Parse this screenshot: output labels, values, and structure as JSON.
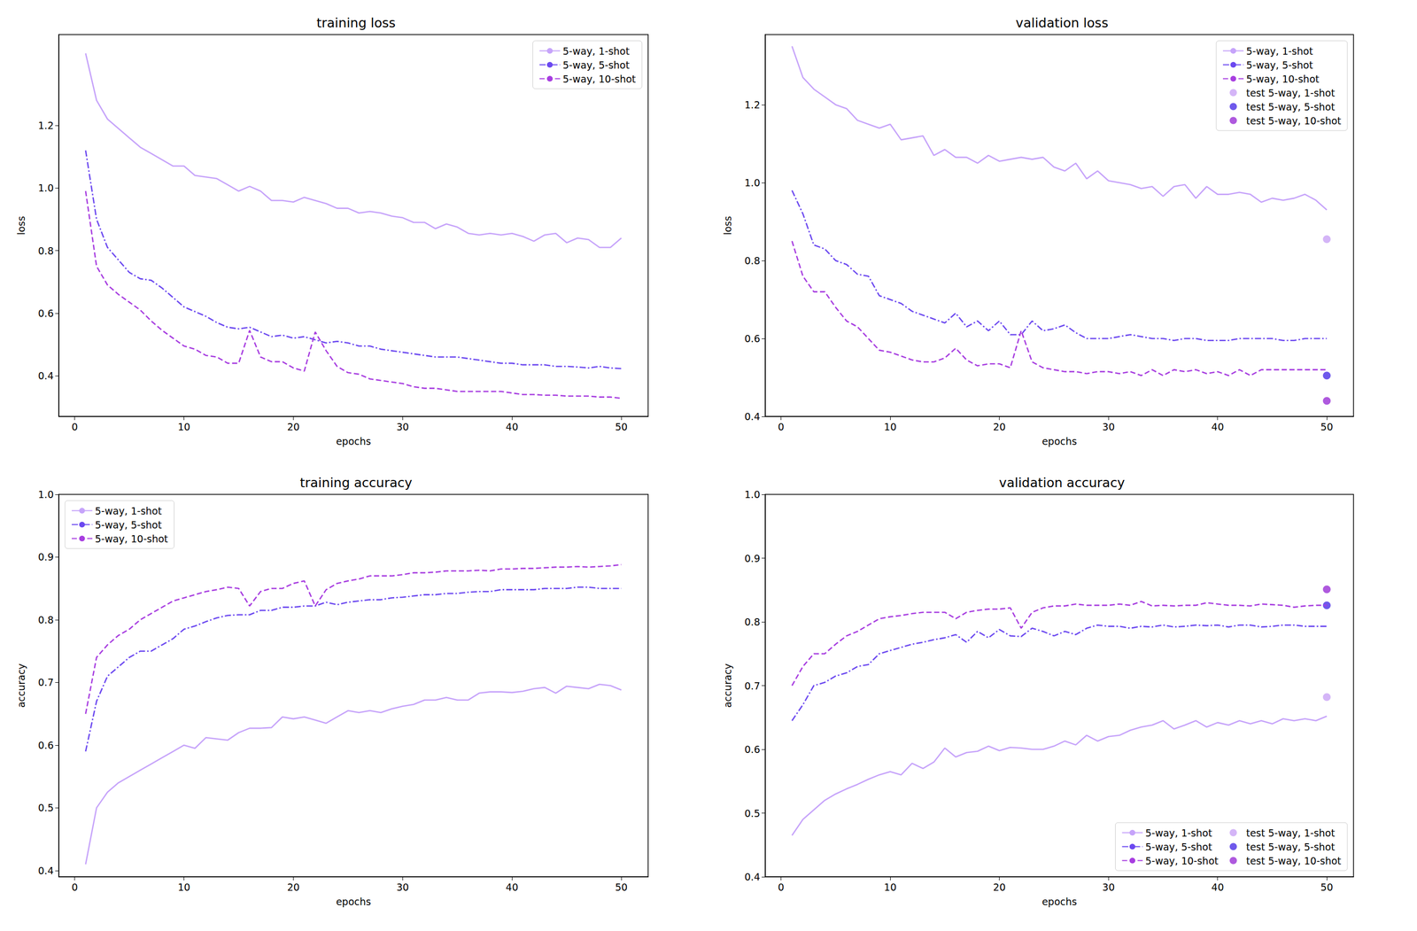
{
  "chart_data": [
    {
      "type": "line",
      "title": "training loss",
      "xlabel": "epochs",
      "ylabel": "loss",
      "x": [
        1,
        2,
        3,
        4,
        5,
        6,
        7,
        8,
        9,
        10,
        11,
        12,
        13,
        14,
        15,
        16,
        17,
        18,
        19,
        20,
        21,
        22,
        23,
        24,
        25,
        26,
        27,
        28,
        29,
        30,
        31,
        32,
        33,
        34,
        35,
        36,
        37,
        38,
        39,
        40,
        41,
        42,
        43,
        44,
        45,
        46,
        47,
        48,
        49,
        50
      ],
      "xlim": [
        -1.45,
        52.45
      ],
      "xticks": [
        0,
        10,
        20,
        30,
        40,
        50
      ],
      "ylim": [
        0.27,
        1.49
      ],
      "yticks": [
        0.4,
        0.6,
        0.8,
        {
          "value": 1.0,
          "label": "1.0"
        },
        1.2
      ],
      "grid": false,
      "legend": "upper right",
      "series": [
        {
          "name": "5-way, 1-shot",
          "color": "#c6a3fa",
          "line_style": "solid",
          "values": [
            1.43,
            1.28,
            1.22,
            1.19,
            1.16,
            1.13,
            1.11,
            1.09,
            1.07,
            1.07,
            1.04,
            1.035,
            1.03,
            1.01,
            0.99,
            1.005,
            0.99,
            0.96,
            0.96,
            0.955,
            0.97,
            0.96,
            0.95,
            0.935,
            0.935,
            0.92,
            0.925,
            0.92,
            0.91,
            0.905,
            0.89,
            0.89,
            0.87,
            0.885,
            0.875,
            0.855,
            0.85,
            0.855,
            0.85,
            0.855,
            0.845,
            0.83,
            0.85,
            0.855,
            0.825,
            0.84,
            0.835,
            0.81,
            0.81,
            0.84
          ]
        },
        {
          "name": "5-way, 5-shot",
          "color": "#6b48f0",
          "line_style": "dashdot",
          "values": [
            1.12,
            0.9,
            0.81,
            0.77,
            0.73,
            0.71,
            0.705,
            0.68,
            0.65,
            0.62,
            0.605,
            0.59,
            0.57,
            0.555,
            0.55,
            0.555,
            0.54,
            0.525,
            0.53,
            0.52,
            0.525,
            0.515,
            0.505,
            0.51,
            0.505,
            0.495,
            0.495,
            0.485,
            0.48,
            0.475,
            0.47,
            0.465,
            0.46,
            0.46,
            0.46,
            0.455,
            0.45,
            0.445,
            0.44,
            0.44,
            0.435,
            0.435,
            0.435,
            0.43,
            0.43,
            0.428,
            0.425,
            0.43,
            0.425,
            0.423
          ]
        },
        {
          "name": "5-way, 10-shot",
          "color": "#a73de0",
          "line_style": "dashed",
          "values": [
            0.99,
            0.75,
            0.69,
            0.66,
            0.635,
            0.61,
            0.575,
            0.545,
            0.52,
            0.495,
            0.485,
            0.465,
            0.46,
            0.44,
            0.44,
            0.545,
            0.46,
            0.445,
            0.445,
            0.425,
            0.415,
            0.54,
            0.48,
            0.43,
            0.41,
            0.405,
            0.39,
            0.385,
            0.38,
            0.375,
            0.365,
            0.36,
            0.36,
            0.355,
            0.35,
            0.35,
            0.35,
            0.35,
            0.35,
            0.345,
            0.34,
            0.34,
            0.338,
            0.338,
            0.335,
            0.335,
            0.335,
            0.332,
            0.332,
            0.328
          ]
        }
      ]
    },
    {
      "type": "line",
      "title": "validation loss",
      "xlabel": "epochs",
      "ylabel": "loss",
      "x": [
        1,
        2,
        3,
        4,
        5,
        6,
        7,
        8,
        9,
        10,
        11,
        12,
        13,
        14,
        15,
        16,
        17,
        18,
        19,
        20,
        21,
        22,
        23,
        24,
        25,
        26,
        27,
        28,
        29,
        30,
        31,
        32,
        33,
        34,
        35,
        36,
        37,
        38,
        39,
        40,
        41,
        42,
        43,
        44,
        45,
        46,
        47,
        48,
        49,
        50
      ],
      "xlim": [
        -1.45,
        52.45
      ],
      "xticks": [
        0,
        10,
        20,
        30,
        40,
        50
      ],
      "ylim": [
        0.4,
        1.38
      ],
      "yticks": [
        0.4,
        0.6,
        0.8,
        {
          "value": 1.0,
          "label": "1.0"
        },
        1.2
      ],
      "grid": false,
      "legend": "upper right",
      "series": [
        {
          "name": "5-way, 1-shot",
          "color": "#c6a3fa",
          "line_style": "solid",
          "values": [
            1.35,
            1.27,
            1.24,
            1.22,
            1.2,
            1.19,
            1.16,
            1.15,
            1.14,
            1.15,
            1.11,
            1.115,
            1.12,
            1.07,
            1.085,
            1.065,
            1.065,
            1.05,
            1.07,
            1.055,
            1.06,
            1.065,
            1.06,
            1.065,
            1.04,
            1.03,
            1.05,
            1.01,
            1.03,
            1.005,
            1.0,
            0.995,
            0.985,
            0.99,
            0.965,
            0.99,
            0.995,
            0.96,
            0.99,
            0.97,
            0.97,
            0.975,
            0.97,
            0.95,
            0.96,
            0.955,
            0.96,
            0.97,
            0.955,
            0.93
          ]
        },
        {
          "name": "5-way, 5-shot",
          "color": "#6b48f0",
          "line_style": "dashdot",
          "values": [
            0.98,
            0.92,
            0.84,
            0.83,
            0.8,
            0.79,
            0.765,
            0.76,
            0.71,
            0.7,
            0.69,
            0.67,
            0.66,
            0.65,
            0.64,
            0.665,
            0.63,
            0.645,
            0.62,
            0.645,
            0.61,
            0.61,
            0.645,
            0.62,
            0.625,
            0.635,
            0.615,
            0.6,
            0.6,
            0.6,
            0.605,
            0.61,
            0.605,
            0.6,
            0.6,
            0.595,
            0.6,
            0.6,
            0.595,
            0.595,
            0.595,
            0.6,
            0.6,
            0.6,
            0.6,
            0.595,
            0.595,
            0.6,
            0.6,
            0.6
          ]
        },
        {
          "name": "5-way, 10-shot",
          "color": "#a73de0",
          "line_style": "dashed",
          "values": [
            0.85,
            0.76,
            0.72,
            0.72,
            0.68,
            0.645,
            0.63,
            0.6,
            0.57,
            0.565,
            0.555,
            0.545,
            0.54,
            0.54,
            0.55,
            0.575,
            0.545,
            0.53,
            0.535,
            0.535,
            0.525,
            0.62,
            0.54,
            0.525,
            0.52,
            0.515,
            0.515,
            0.51,
            0.515,
            0.515,
            0.51,
            0.515,
            0.505,
            0.52,
            0.505,
            0.52,
            0.515,
            0.52,
            0.51,
            0.515,
            0.505,
            0.52,
            0.505,
            0.52,
            0.52,
            0.52,
            0.52,
            0.52,
            0.52,
            0.52
          ]
        },
        {
          "name": "test 5-way, 1-shot",
          "type": "scatter",
          "marker": "circle",
          "color": "#c9a3f5",
          "x": [
            50
          ],
          "values": [
            0.855
          ]
        },
        {
          "name": "test 5-way, 5-shot",
          "type": "scatter",
          "marker": "circle",
          "color": "#4a2fe6",
          "x": [
            50
          ],
          "values": [
            0.505
          ]
        },
        {
          "name": "test 5-way, 10-shot",
          "type": "scatter",
          "marker": "circle",
          "color": "#9a2fd6",
          "x": [
            50
          ],
          "values": [
            0.44
          ]
        }
      ]
    },
    {
      "type": "line",
      "title": "training accuracy",
      "xlabel": "epochs",
      "ylabel": "accuracy",
      "x": [
        1,
        2,
        3,
        4,
        5,
        6,
        7,
        8,
        9,
        10,
        11,
        12,
        13,
        14,
        15,
        16,
        17,
        18,
        19,
        20,
        21,
        22,
        23,
        24,
        25,
        26,
        27,
        28,
        29,
        30,
        31,
        32,
        33,
        34,
        35,
        36,
        37,
        38,
        39,
        40,
        41,
        42,
        43,
        44,
        45,
        46,
        47,
        48,
        49,
        50
      ],
      "xlim": [
        -1.45,
        52.45
      ],
      "xticks": [
        0,
        10,
        20,
        30,
        40,
        50
      ],
      "ylim": [
        0.39,
        1.0
      ],
      "yticks": [
        0.4,
        0.5,
        0.6,
        0.7,
        0.8,
        0.9,
        {
          "value": 1.0,
          "label": "1.0"
        }
      ],
      "grid": false,
      "legend": "upper left",
      "series": [
        {
          "name": "5-way, 1-shot",
          "color": "#c6a3fa",
          "line_style": "solid",
          "values": [
            0.41,
            0.5,
            0.525,
            0.54,
            0.55,
            0.56,
            0.57,
            0.58,
            0.59,
            0.6,
            0.595,
            0.612,
            0.61,
            0.608,
            0.62,
            0.627,
            0.627,
            0.628,
            0.645,
            0.642,
            0.645,
            0.64,
            0.635,
            0.645,
            0.655,
            0.652,
            0.655,
            0.652,
            0.658,
            0.662,
            0.665,
            0.672,
            0.672,
            0.676,
            0.672,
            0.672,
            0.683,
            0.685,
            0.685,
            0.684,
            0.686,
            0.69,
            0.692,
            0.683,
            0.694,
            0.692,
            0.69,
            0.697,
            0.695,
            0.688
          ]
        },
        {
          "name": "5-way, 5-shot",
          "color": "#6b48f0",
          "line_style": "dashdot",
          "values": [
            0.59,
            0.67,
            0.71,
            0.725,
            0.74,
            0.75,
            0.75,
            0.76,
            0.77,
            0.785,
            0.79,
            0.797,
            0.803,
            0.807,
            0.808,
            0.808,
            0.815,
            0.815,
            0.82,
            0.82,
            0.822,
            0.822,
            0.828,
            0.824,
            0.828,
            0.83,
            0.832,
            0.832,
            0.835,
            0.836,
            0.838,
            0.84,
            0.84,
            0.842,
            0.842,
            0.844,
            0.845,
            0.845,
            0.848,
            0.848,
            0.848,
            0.848,
            0.85,
            0.85,
            0.85,
            0.852,
            0.852,
            0.85,
            0.85,
            0.85
          ]
        },
        {
          "name": "5-way, 10-shot",
          "color": "#a73de0",
          "line_style": "dashed",
          "values": [
            0.65,
            0.74,
            0.76,
            0.775,
            0.785,
            0.8,
            0.81,
            0.82,
            0.83,
            0.835,
            0.84,
            0.845,
            0.848,
            0.852,
            0.85,
            0.822,
            0.845,
            0.85,
            0.85,
            0.858,
            0.862,
            0.822,
            0.848,
            0.858,
            0.862,
            0.865,
            0.87,
            0.87,
            0.87,
            0.872,
            0.875,
            0.875,
            0.876,
            0.878,
            0.878,
            0.878,
            0.879,
            0.878,
            0.881,
            0.881,
            0.882,
            0.882,
            0.883,
            0.884,
            0.884,
            0.885,
            0.884,
            0.885,
            0.886,
            0.888
          ]
        }
      ]
    },
    {
      "type": "line",
      "title": "validation accuracy",
      "xlabel": "epochs",
      "ylabel": "accuracy",
      "x": [
        1,
        2,
        3,
        4,
        5,
        6,
        7,
        8,
        9,
        10,
        11,
        12,
        13,
        14,
        15,
        16,
        17,
        18,
        19,
        20,
        21,
        22,
        23,
        24,
        25,
        26,
        27,
        28,
        29,
        30,
        31,
        32,
        33,
        34,
        35,
        36,
        37,
        38,
        39,
        40,
        41,
        42,
        43,
        44,
        45,
        46,
        47,
        48,
        49,
        50
      ],
      "xlim": [
        -1.45,
        52.45
      ],
      "xticks": [
        0,
        10,
        20,
        30,
        40,
        50
      ],
      "ylim": [
        0.4,
        1.0
      ],
      "yticks": [
        0.4,
        0.5,
        0.6,
        0.7,
        0.8,
        0.9,
        {
          "value": 1.0,
          "label": "1.0"
        }
      ],
      "grid": false,
      "legend": "lower right",
      "series": [
        {
          "name": "5-way, 1-shot",
          "color": "#c6a3fa",
          "line_style": "solid",
          "values": [
            0.465,
            0.49,
            0.505,
            0.52,
            0.53,
            0.538,
            0.545,
            0.553,
            0.56,
            0.565,
            0.56,
            0.578,
            0.57,
            0.58,
            0.602,
            0.588,
            0.595,
            0.597,
            0.605,
            0.598,
            0.603,
            0.602,
            0.6,
            0.6,
            0.605,
            0.613,
            0.607,
            0.622,
            0.613,
            0.62,
            0.622,
            0.63,
            0.635,
            0.638,
            0.645,
            0.632,
            0.638,
            0.645,
            0.635,
            0.642,
            0.638,
            0.645,
            0.64,
            0.645,
            0.64,
            0.648,
            0.645,
            0.648,
            0.645,
            0.652
          ]
        },
        {
          "name": "5-way, 5-shot",
          "color": "#6b48f0",
          "line_style": "dashdot",
          "values": [
            0.645,
            0.67,
            0.7,
            0.705,
            0.715,
            0.72,
            0.73,
            0.733,
            0.75,
            0.755,
            0.76,
            0.765,
            0.768,
            0.772,
            0.775,
            0.78,
            0.768,
            0.785,
            0.775,
            0.788,
            0.778,
            0.777,
            0.79,
            0.785,
            0.778,
            0.785,
            0.78,
            0.79,
            0.795,
            0.793,
            0.793,
            0.79,
            0.793,
            0.792,
            0.795,
            0.792,
            0.793,
            0.795,
            0.794,
            0.795,
            0.792,
            0.795,
            0.795,
            0.792,
            0.793,
            0.795,
            0.795,
            0.793,
            0.793,
            0.793
          ]
        },
        {
          "name": "5-way, 10-shot",
          "color": "#a73de0",
          "line_style": "dashed",
          "values": [
            0.7,
            0.73,
            0.75,
            0.75,
            0.765,
            0.778,
            0.785,
            0.795,
            0.805,
            0.808,
            0.81,
            0.813,
            0.815,
            0.815,
            0.815,
            0.805,
            0.815,
            0.818,
            0.82,
            0.82,
            0.822,
            0.79,
            0.815,
            0.822,
            0.825,
            0.825,
            0.828,
            0.826,
            0.826,
            0.826,
            0.828,
            0.826,
            0.832,
            0.825,
            0.826,
            0.825,
            0.826,
            0.826,
            0.83,
            0.828,
            0.826,
            0.826,
            0.825,
            0.828,
            0.827,
            0.826,
            0.823,
            0.825,
            0.826,
            0.826
          ]
        },
        {
          "name": "test 5-way, 1-shot",
          "type": "scatter",
          "marker": "circle",
          "color": "#c9a3f5",
          "x": [
            50
          ],
          "values": [
            0.682
          ]
        },
        {
          "name": "test 5-way, 5-shot",
          "type": "scatter",
          "marker": "circle",
          "color": "#4a2fe6",
          "x": [
            50
          ],
          "values": [
            0.826
          ]
        },
        {
          "name": "test 5-way, 10-shot",
          "type": "scatter",
          "marker": "circle",
          "color": "#9a2fd6",
          "x": [
            50
          ],
          "values": [
            0.851
          ]
        }
      ]
    }
  ]
}
